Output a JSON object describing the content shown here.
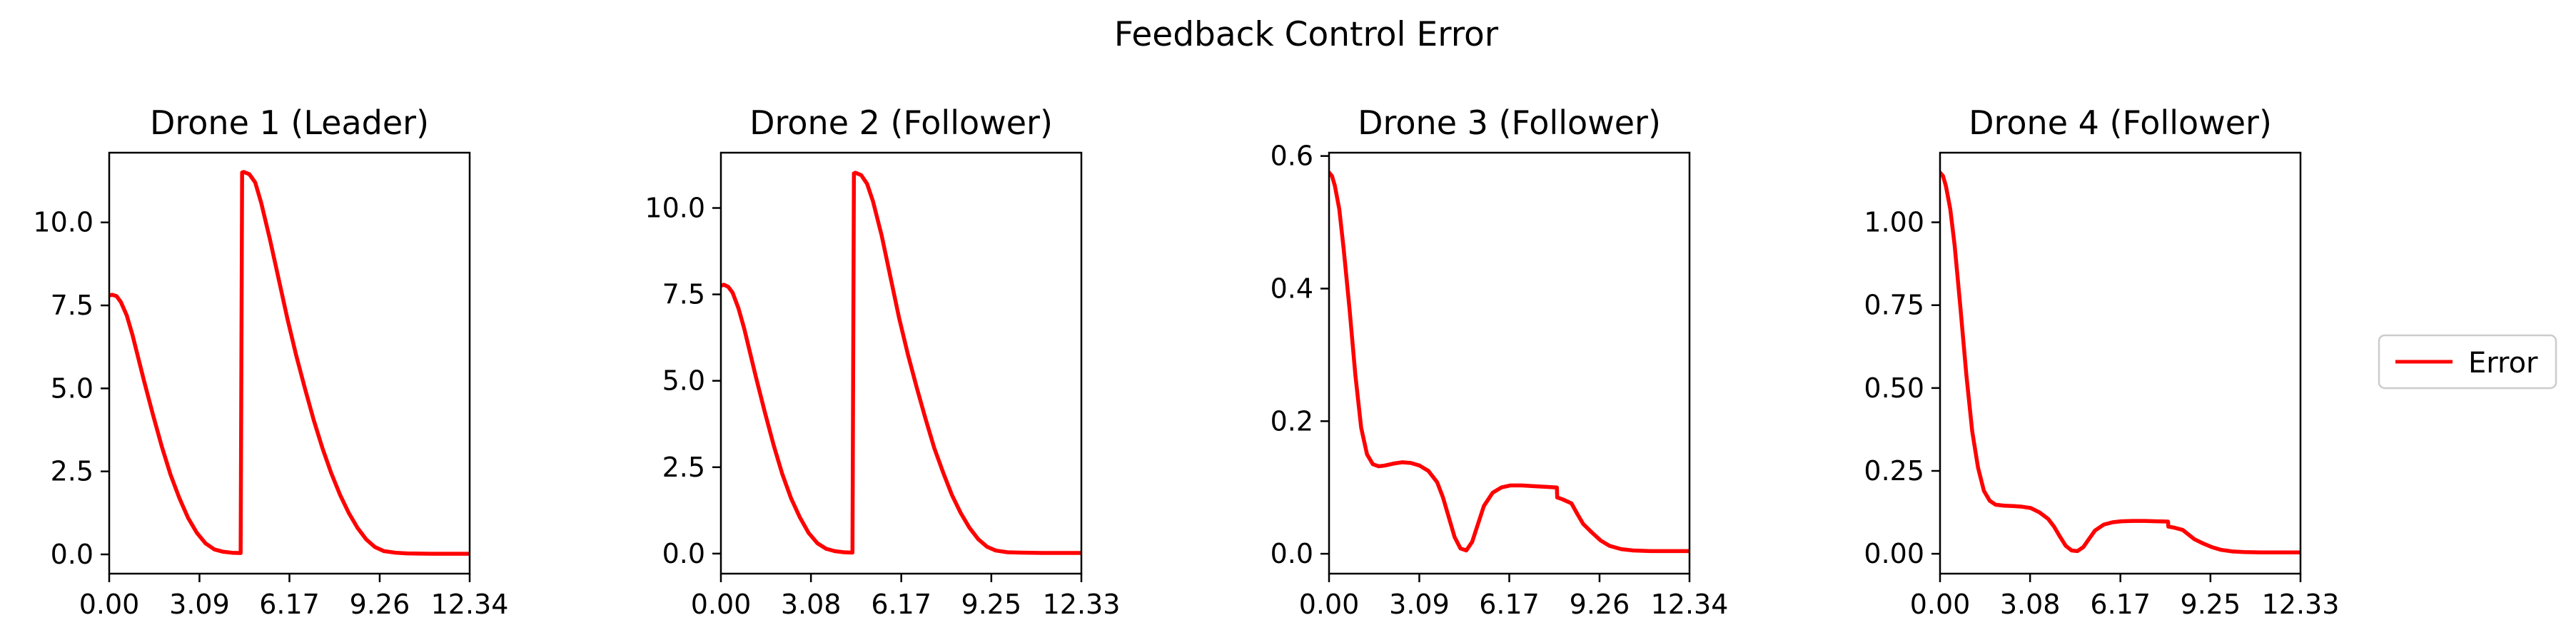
{
  "figure": {
    "title": "Feedback Control Error",
    "legend": {
      "label": "Error",
      "color": "#ff0000",
      "placement": "right"
    }
  },
  "chart_data": [
    {
      "type": "line",
      "title": "Drone 1 (Leader)",
      "xlabel": "",
      "ylabel": "",
      "xlim": [
        0,
        12.34
      ],
      "ylim": [
        -0.58,
        12.1
      ],
      "xticks": [
        0,
        3.09,
        6.17,
        9.26,
        12.34
      ],
      "xtick_labels": [
        "0.00",
        "3.09",
        "6.17",
        "9.26",
        "12.34"
      ],
      "yticks": [
        0,
        2.5,
        5,
        7.5,
        10
      ],
      "ytick_labels": [
        "0.0",
        "2.5",
        "5.0",
        "7.5",
        "10.0"
      ],
      "grid": false,
      "series": [
        {
          "name": "Error",
          "color": "#ff0000",
          "x": [
            0,
            0.1,
            0.25,
            0.4,
            0.6,
            0.8,
            1.0,
            1.2,
            1.5,
            1.8,
            2.1,
            2.4,
            2.7,
            3.0,
            3.3,
            3.6,
            3.9,
            4.2,
            4.5,
            4.55,
            4.6,
            4.8,
            5.0,
            5.2,
            5.5,
            5.8,
            6.1,
            6.4,
            6.7,
            7.0,
            7.3,
            7.6,
            7.9,
            8.2,
            8.5,
            8.8,
            9.1,
            9.4,
            9.8,
            10.2,
            11.0,
            12.34
          ],
          "y": [
            7.8,
            7.82,
            7.78,
            7.6,
            7.2,
            6.6,
            5.9,
            5.2,
            4.2,
            3.25,
            2.4,
            1.7,
            1.1,
            0.65,
            0.33,
            0.15,
            0.08,
            0.05,
            0.04,
            11.5,
            11.52,
            11.45,
            11.2,
            10.6,
            9.5,
            8.3,
            7.1,
            6.0,
            5.0,
            4.05,
            3.2,
            2.45,
            1.8,
            1.25,
            0.8,
            0.45,
            0.22,
            0.1,
            0.05,
            0.03,
            0.02,
            0.02
          ]
        }
      ]
    },
    {
      "type": "line",
      "title": "Drone 2 (Follower)",
      "xlabel": "",
      "ylabel": "",
      "xlim": [
        0,
        12.33
      ],
      "ylim": [
        -0.58,
        11.6
      ],
      "xticks": [
        0,
        3.08,
        6.17,
        9.25,
        12.33
      ],
      "xtick_labels": [
        "0.00",
        "3.08",
        "6.17",
        "9.25",
        "12.33"
      ],
      "yticks": [
        0,
        2.5,
        5,
        7.5,
        10
      ],
      "ytick_labels": [
        "0.0",
        "2.5",
        "5.0",
        "7.5",
        "10.0"
      ],
      "grid": false,
      "series": [
        {
          "name": "Error",
          "color": "#ff0000",
          "x": [
            0,
            0.1,
            0.25,
            0.4,
            0.6,
            0.8,
            1.0,
            1.2,
            1.5,
            1.8,
            2.1,
            2.4,
            2.7,
            3.0,
            3.3,
            3.6,
            3.9,
            4.2,
            4.5,
            4.55,
            4.6,
            4.8,
            5.0,
            5.2,
            5.5,
            5.8,
            6.1,
            6.4,
            6.7,
            7.0,
            7.3,
            7.6,
            7.9,
            8.2,
            8.5,
            8.8,
            9.1,
            9.4,
            9.8,
            10.2,
            11.0,
            12.33
          ],
          "y": [
            7.75,
            7.78,
            7.72,
            7.55,
            7.1,
            6.5,
            5.8,
            5.1,
            4.1,
            3.15,
            2.3,
            1.6,
            1.05,
            0.6,
            0.3,
            0.14,
            0.07,
            0.04,
            0.03,
            11.0,
            11.02,
            10.95,
            10.7,
            10.2,
            9.2,
            8.0,
            6.8,
            5.75,
            4.8,
            3.9,
            3.05,
            2.35,
            1.7,
            1.18,
            0.75,
            0.42,
            0.2,
            0.09,
            0.04,
            0.03,
            0.02,
            0.02
          ]
        }
      ]
    },
    {
      "type": "line",
      "title": "Drone 3 (Follower)",
      "xlabel": "",
      "ylabel": "",
      "xlim": [
        0,
        12.34
      ],
      "ylim": [
        -0.03,
        0.605
      ],
      "xticks": [
        0,
        3.09,
        6.17,
        9.26,
        12.34
      ],
      "xtick_labels": [
        "0.00",
        "3.09",
        "6.17",
        "9.26",
        "12.34"
      ],
      "yticks": [
        0,
        0.2,
        0.4,
        0.6
      ],
      "ytick_labels": [
        "0.0",
        "0.2",
        "0.4",
        "0.6"
      ],
      "grid": false,
      "series": [
        {
          "name": "Error",
          "color": "#ff0000",
          "x": [
            0,
            0.1,
            0.2,
            0.35,
            0.5,
            0.7,
            0.9,
            1.1,
            1.3,
            1.5,
            1.7,
            1.9,
            2.2,
            2.5,
            2.8,
            3.1,
            3.4,
            3.7,
            3.9,
            4.1,
            4.3,
            4.5,
            4.7,
            4.9,
            5.1,
            5.3,
            5.6,
            5.9,
            6.2,
            6.6,
            7.0,
            7.4,
            7.8,
            7.81,
            8.0,
            8.3,
            8.5,
            8.7,
            9.0,
            9.3,
            9.6,
            10.0,
            10.4,
            11.0,
            11.6,
            12.34
          ],
          "y": [
            0.575,
            0.57,
            0.555,
            0.52,
            0.46,
            0.37,
            0.27,
            0.19,
            0.15,
            0.135,
            0.132,
            0.133,
            0.136,
            0.138,
            0.137,
            0.133,
            0.125,
            0.108,
            0.085,
            0.055,
            0.025,
            0.008,
            0.005,
            0.018,
            0.045,
            0.072,
            0.092,
            0.1,
            0.103,
            0.103,
            0.102,
            0.101,
            0.1,
            0.085,
            0.082,
            0.076,
            0.06,
            0.045,
            0.032,
            0.02,
            0.012,
            0.007,
            0.005,
            0.004,
            0.004,
            0.004
          ]
        }
      ]
    },
    {
      "type": "line",
      "title": "Drone 4 (Follower)",
      "xlabel": "",
      "ylabel": "",
      "xlim": [
        0,
        12.33
      ],
      "ylim": [
        -0.06,
        1.21
      ],
      "xticks": [
        0,
        3.08,
        6.17,
        9.25,
        12.33
      ],
      "xtick_labels": [
        "0.00",
        "3.08",
        "6.17",
        "9.25",
        "12.33"
      ],
      "yticks": [
        0,
        0.25,
        0.5,
        0.75,
        1.0
      ],
      "ytick_labels": [
        "0.00",
        "0.25",
        "0.50",
        "0.75",
        "1.00"
      ],
      "grid": false,
      "series": [
        {
          "name": "Error",
          "color": "#ff0000",
          "x": [
            0,
            0.1,
            0.2,
            0.35,
            0.5,
            0.7,
            0.9,
            1.1,
            1.3,
            1.5,
            1.7,
            1.9,
            2.2,
            2.5,
            2.8,
            3.1,
            3.4,
            3.7,
            3.9,
            4.1,
            4.3,
            4.5,
            4.7,
            4.9,
            5.1,
            5.3,
            5.6,
            5.9,
            6.2,
            6.6,
            7.0,
            7.4,
            7.8,
            7.81,
            8.0,
            8.3,
            8.5,
            8.7,
            9.0,
            9.3,
            9.6,
            10.0,
            10.4,
            11.0,
            11.6,
            12.33
          ],
          "y": [
            1.15,
            1.14,
            1.11,
            1.04,
            0.93,
            0.74,
            0.54,
            0.37,
            0.26,
            0.19,
            0.16,
            0.148,
            0.145,
            0.144,
            0.142,
            0.138,
            0.125,
            0.105,
            0.082,
            0.052,
            0.024,
            0.01,
            0.008,
            0.02,
            0.045,
            0.07,
            0.088,
            0.095,
            0.098,
            0.099,
            0.099,
            0.098,
            0.097,
            0.082,
            0.079,
            0.072,
            0.058,
            0.044,
            0.031,
            0.02,
            0.012,
            0.007,
            0.005,
            0.004,
            0.004,
            0.004
          ]
        }
      ]
    }
  ]
}
